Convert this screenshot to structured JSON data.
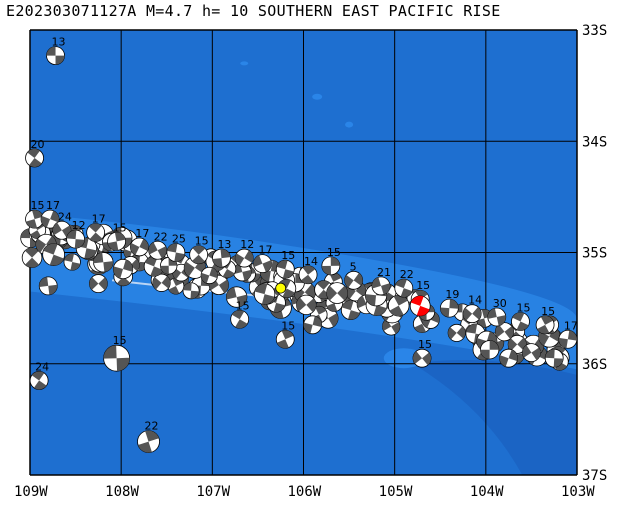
{
  "title": "E202303071127A M=4.7 h= 10 SOUTHERN EAST PACIFIC RISE",
  "colors": {
    "ocean": "#1e6fd0",
    "shallow": "#2a85e8",
    "deep": "#1a62c0",
    "ridge": "#2f8ff0",
    "grid": "#000000",
    "epicenter": "#ffff00",
    "target_beachball": "#ff0000",
    "beachball_dark": "#555555",
    "beachball_light": "#ffffff"
  },
  "lon_labels": [
    "109W",
    "108W",
    "107W",
    "106W",
    "105W",
    "104W",
    "103W"
  ],
  "lat_labels": [
    "33S",
    "34S",
    "35S",
    "36S",
    "37S"
  ],
  "extent": {
    "lon_min": -109,
    "lon_max": -103,
    "lat_min": -37,
    "lat_max": -33
  },
  "epicenter": {
    "lon": -106.25,
    "lat": -35.32
  },
  "target_event": {
    "lon": -104.72,
    "lat": -35.48
  },
  "mechanisms": [
    {
      "lon": -108.72,
      "lat": -33.23,
      "mag": "13"
    },
    {
      "lon": -108.95,
      "lat": -34.15,
      "mag": "20"
    },
    {
      "lon": -108.95,
      "lat": -34.7,
      "mag": "15"
    },
    {
      "lon": -108.78,
      "lat": -34.7,
      "mag": "17"
    },
    {
      "lon": -108.65,
      "lat": -34.8,
      "mag": "24"
    },
    {
      "lon": -108.5,
      "lat": -34.88,
      "mag": "12"
    },
    {
      "lon": -108.28,
      "lat": -34.82,
      "mag": "17"
    },
    {
      "lon": -108.05,
      "lat": -34.9,
      "mag": "15"
    },
    {
      "lon": -107.8,
      "lat": -34.95,
      "mag": "17"
    },
    {
      "lon": -107.6,
      "lat": -34.98,
      "mag": "22"
    },
    {
      "lon": -107.4,
      "lat": -35.0,
      "mag": "25"
    },
    {
      "lon": -107.15,
      "lat": -35.02,
      "mag": "15"
    },
    {
      "lon": -106.9,
      "lat": -35.05,
      "mag": "13"
    },
    {
      "lon": -106.65,
      "lat": -35.05,
      "mag": "12"
    },
    {
      "lon": -106.45,
      "lat": -35.1,
      "mag": "17"
    },
    {
      "lon": -106.2,
      "lat": -35.15,
      "mag": "15"
    },
    {
      "lon": -105.95,
      "lat": -35.2,
      "mag": "14"
    },
    {
      "lon": -105.7,
      "lat": -35.12,
      "mag": "15"
    },
    {
      "lon": -105.45,
      "lat": -35.25,
      "mag": "5"
    },
    {
      "lon": -105.15,
      "lat": -35.3,
      "mag": "21"
    },
    {
      "lon": -104.9,
      "lat": -35.32,
      "mag": "22"
    },
    {
      "lon": -104.72,
      "lat": -35.42,
      "mag": "15"
    },
    {
      "lon": -104.4,
      "lat": -35.5,
      "mag": "19"
    },
    {
      "lon": -104.15,
      "lat": -35.55,
      "mag": "14"
    },
    {
      "lon": -103.88,
      "lat": -35.58,
      "mag": "30"
    },
    {
      "lon": -103.62,
      "lat": -35.62,
      "mag": "15"
    },
    {
      "lon": -103.35,
      "lat": -35.65,
      "mag": "15"
    },
    {
      "lon": -103.1,
      "lat": -35.78,
      "mag": "17"
    },
    {
      "lon": -108.25,
      "lat": -35.28,
      "mag": ""
    },
    {
      "lon": -108.8,
      "lat": -35.3,
      "mag": ""
    },
    {
      "lon": -106.7,
      "lat": -35.6,
      "mag": "15"
    },
    {
      "lon": -106.2,
      "lat": -35.78,
      "mag": "15"
    },
    {
      "lon": -105.9,
      "lat": -35.65,
      "mag": ""
    },
    {
      "lon": -104.7,
      "lat": -35.95,
      "mag": "15"
    },
    {
      "lon": -108.05,
      "lat": -35.95,
      "mag": "15"
    },
    {
      "lon": -108.9,
      "lat": -36.15,
      "mag": "24"
    },
    {
      "lon": -107.7,
      "lat": -36.7,
      "mag": "22"
    },
    {
      "lon": -103.75,
      "lat": -35.95,
      "mag": ""
    },
    {
      "lon": -103.5,
      "lat": -35.9,
      "mag": ""
    },
    {
      "lon": -103.25,
      "lat": -35.95,
      "mag": ""
    }
  ]
}
